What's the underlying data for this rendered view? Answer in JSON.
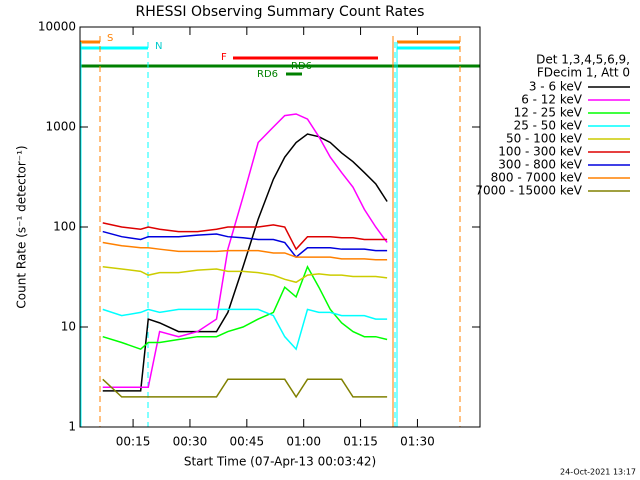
{
  "chart_data": {
    "type": "line",
    "title": "RHESSI Observing Summary Count Rates",
    "x_label": "Start Time (07-Apr-13 00:03:42)",
    "y_label": "Count Rate (s⁻¹ detector⁻¹)",
    "legend_header": [
      "Det 1,3,4,5,6,9,",
      "FDecim 1, Att 0"
    ],
    "footer": "24-Oct-2021 13:17",
    "annotations": [
      "S",
      "N",
      "F",
      "RD6",
      "RD6"
    ],
    "log_y": true,
    "legend": "right",
    "xlim": [
      1.0,
      106.5
    ],
    "ylim": [
      1,
      10000
    ],
    "xticks": [
      {
        "value": 15,
        "label": "00:15"
      },
      {
        "value": 30,
        "label": "00:30"
      },
      {
        "value": 45,
        "label": "00:45"
      },
      {
        "value": 60,
        "label": "01:00"
      },
      {
        "value": 75,
        "label": "01:15"
      },
      {
        "value": 90,
        "label": "01:30"
      }
    ],
    "yticks": [
      1,
      10,
      100,
      1000,
      10000
    ],
    "x": [
      7,
      12,
      17,
      19,
      22,
      27,
      32,
      37,
      40,
      44,
      48,
      52,
      55,
      58,
      61,
      64,
      67,
      70,
      73,
      76,
      79,
      82
    ],
    "series": [
      {
        "name": "3 - 6 keV",
        "color": "#000000",
        "values": [
          2.3,
          2.3,
          2.3,
          12,
          11,
          9,
          9,
          9,
          14,
          40,
          120,
          300,
          500,
          700,
          850,
          800,
          700,
          550,
          450,
          350,
          270,
          180
        ]
      },
      {
        "name": "6 - 12 keV",
        "color": "#ff00ff",
        "values": [
          2.5,
          2.5,
          2.5,
          2.5,
          9,
          8,
          9,
          12,
          60,
          200,
          700,
          1000,
          1300,
          1350,
          1200,
          800,
          500,
          350,
          250,
          150,
          100,
          70
        ]
      },
      {
        "name": "12 - 25 keV",
        "color": "#00ff00",
        "values": [
          8,
          7,
          6,
          7,
          7,
          7.5,
          8,
          8,
          9,
          10,
          12,
          14,
          25,
          20,
          40,
          25,
          15,
          11,
          9,
          8,
          8,
          7.5
        ]
      },
      {
        "name": "25 - 50 keV",
        "color": "#00ffff",
        "values": [
          15,
          13,
          14,
          15,
          14,
          15,
          15,
          15,
          15,
          15,
          15,
          13,
          8,
          6,
          15,
          14,
          14,
          13,
          13,
          13,
          12,
          12
        ]
      },
      {
        "name": "50 - 100 keV",
        "color": "#cccc00",
        "values": [
          40,
          38,
          36,
          33,
          35,
          35,
          37,
          38,
          36,
          36,
          35,
          33,
          30,
          28,
          33,
          34,
          33,
          33,
          32,
          32,
          32,
          31
        ]
      },
      {
        "name": "100 - 300 keV",
        "color": "#dd0000",
        "values": [
          110,
          100,
          95,
          100,
          95,
          90,
          90,
          95,
          100,
          100,
          100,
          105,
          100,
          60,
          80,
          80,
          80,
          78,
          78,
          75,
          75,
          75
        ]
      },
      {
        "name": "300 - 800 keV",
        "color": "#0000dd",
        "values": [
          90,
          80,
          75,
          80,
          80,
          80,
          83,
          85,
          80,
          78,
          75,
          75,
          70,
          50,
          62,
          62,
          62,
          60,
          60,
          60,
          58,
          58
        ]
      },
      {
        "name": "800 - 7000 keV",
        "color": "#ff8000",
        "values": [
          70,
          65,
          62,
          62,
          60,
          57,
          57,
          57,
          58,
          58,
          58,
          55,
          55,
          50,
          50,
          50,
          50,
          48,
          48,
          48,
          47,
          47
        ]
      },
      {
        "name": "7000 - 15000 keV",
        "color": "#808000",
        "values": [
          3,
          2,
          2,
          2,
          2,
          2,
          2,
          2,
          3,
          3,
          3,
          3,
          3,
          2,
          3,
          3,
          3,
          3,
          2,
          2,
          2,
          2
        ]
      }
    ]
  }
}
